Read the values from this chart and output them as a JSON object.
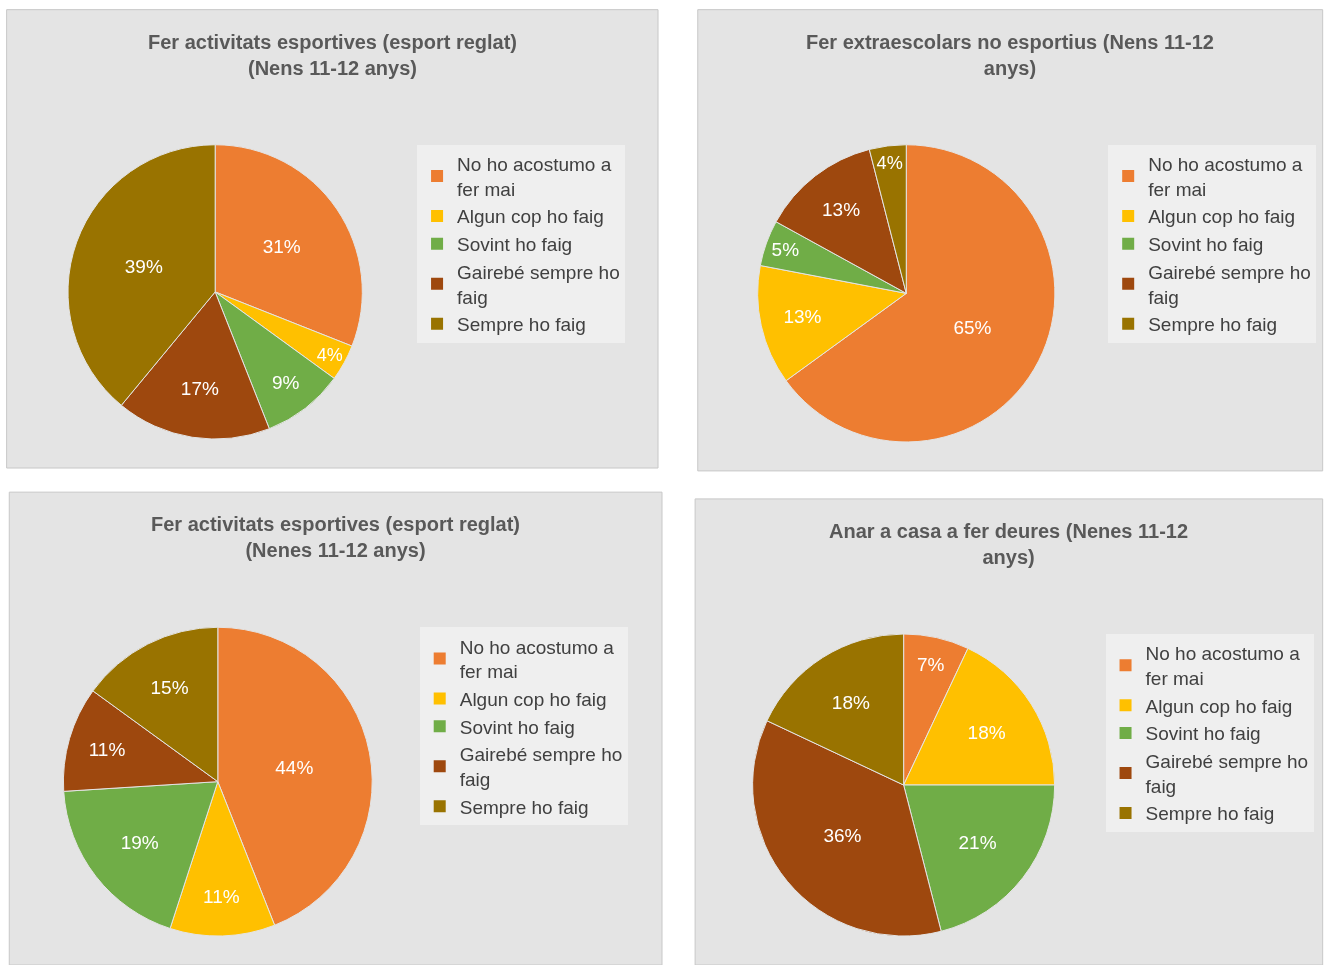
{
  "chart_data": [
    {
      "type": "pie",
      "title": "Fer activitats esportives (esport reglat) (Nens 11-12 anys)",
      "categories": [
        "No ho acostumo a fer mai",
        "Algun cop ho faig",
        "Sovint ho faig",
        "Gairebé sempre ho faig",
        "Sempre ho faig"
      ],
      "values": [
        31,
        4,
        9,
        17,
        39
      ],
      "value_labels": [
        "31%",
        "4%",
        "9%",
        "17%",
        "39%"
      ],
      "colors": [
        "#ed7d31",
        "#ffc000",
        "#70ad47",
        "#9e480e",
        "#997300"
      ],
      "legend": "right"
    },
    {
      "type": "pie",
      "title": "Fer extraescolars no esportius (Nens 11-12 anys)",
      "categories": [
        "No ho acostumo a fer mai",
        "Algun cop ho faig",
        "Sovint ho faig",
        "Gairebé sempre ho faig",
        "Sempre ho faig"
      ],
      "values": [
        65,
        13,
        5,
        13,
        4
      ],
      "value_labels": [
        "65%",
        "13%",
        "5%",
        "13%",
        "4%"
      ],
      "colors": [
        "#ed7d31",
        "#ffc000",
        "#70ad47",
        "#9e480e",
        "#997300"
      ],
      "legend": "right"
    },
    {
      "type": "pie",
      "title": "Fer activitats esportives (esport reglat) (Nenes 11-12 anys)",
      "categories": [
        "No ho acostumo a fer mai",
        "Algun cop ho faig",
        "Sovint ho faig",
        "Gairebé sempre ho faig",
        "Sempre ho faig"
      ],
      "values": [
        44,
        11,
        19,
        11,
        15
      ],
      "value_labels": [
        "44%",
        "11%",
        "19%",
        "11%",
        "15%"
      ],
      "colors": [
        "#ed7d31",
        "#ffc000",
        "#70ad47",
        "#9e480e",
        "#997300"
      ],
      "legend": "right"
    },
    {
      "type": "pie",
      "title": "Anar a casa a fer deures (Nenes 11-12 anys)",
      "categories": [
        "No ho acostumo a fer mai",
        "Algun cop ho faig",
        "Sovint ho faig",
        "Gairebé sempre ho faig",
        "Sempre ho faig"
      ],
      "values": [
        7,
        18,
        21,
        36,
        18
      ],
      "value_labels": [
        "7%",
        "18%",
        "21%",
        "36%",
        "18%"
      ],
      "colors": [
        "#ed7d31",
        "#ffc000",
        "#70ad47",
        "#9e480e",
        "#997300"
      ],
      "legend": "right"
    }
  ]
}
